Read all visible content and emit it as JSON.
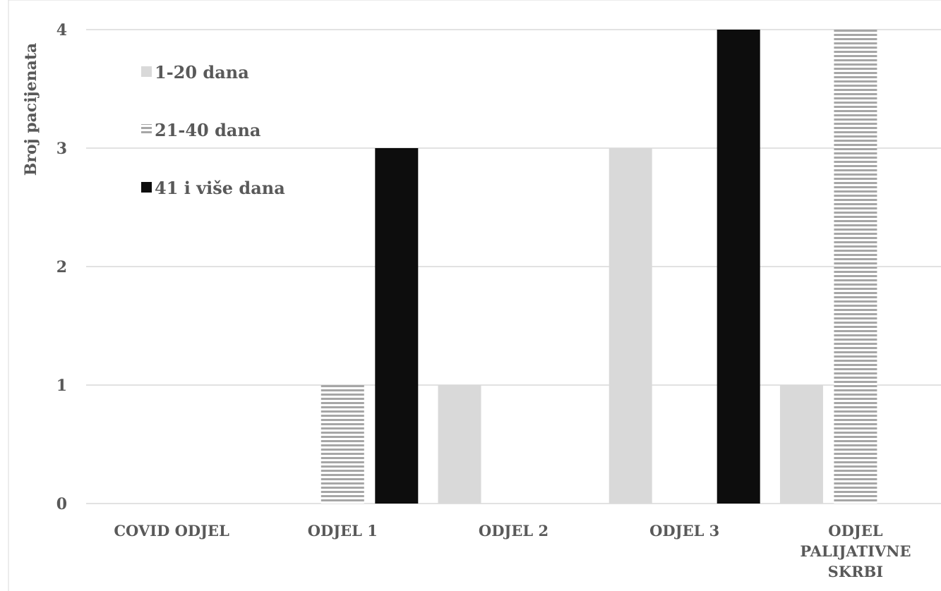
{
  "chart_data": {
    "type": "bar",
    "title": "",
    "xlabel": "",
    "ylabel": "Broj pacijenata",
    "ylim": [
      0,
      4
    ],
    "yticks": [
      0,
      1,
      2,
      3,
      4
    ],
    "grid": true,
    "legend_position": "top-left",
    "categories": [
      [
        "COVID ODJEL"
      ],
      [
        "ODJEL 1"
      ],
      [
        "ODJEL 2"
      ],
      [
        "ODJEL 3"
      ],
      [
        "ODJEL",
        "PALIJATIVNE",
        "SKRBI"
      ]
    ],
    "series": [
      {
        "name": "1-20 dana",
        "values": [
          0,
          0,
          1,
          3,
          1
        ],
        "color": "#d9d9d9",
        "pattern": "solid"
      },
      {
        "name": "21-40 dana",
        "values": [
          0,
          1,
          0,
          0,
          4
        ],
        "color": "#a6a6a6",
        "pattern": "horizontal-stripes"
      },
      {
        "name": "41 i više dana",
        "values": [
          0,
          3,
          0,
          4,
          0
        ],
        "color": "#0d0d0d",
        "pattern": "solid"
      }
    ]
  },
  "colors": {
    "text": "#595959",
    "gridline": "#d9d9d9",
    "frame": "#d9d9d9"
  }
}
